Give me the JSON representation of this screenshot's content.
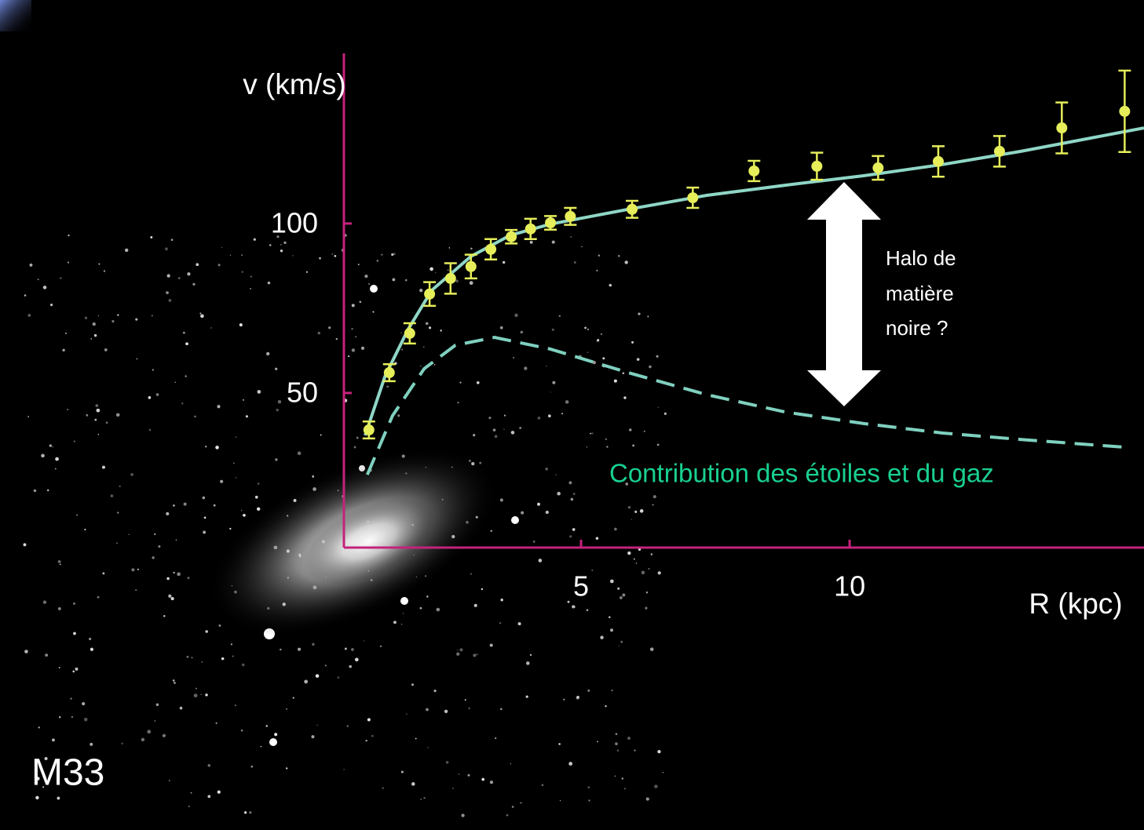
{
  "chart_data": {
    "type": "rotation-curve",
    "y_label": "v (km/s)",
    "x_label": "R (kpc)",
    "galaxy_label": "M33",
    "annotation_halo": [
      "Halo de",
      "matière",
      "noire ?"
    ],
    "annotation_components": "Contribution des étoiles et du gaz",
    "xlim": [
      0.585,
      15.48
    ],
    "ylim": [
      4.4,
      150.2
    ],
    "xticks": [
      5,
      10
    ],
    "yticks": [
      50,
      100
    ],
    "axis_color": "#c4227c",
    "points": {
      "color": "#e6ee5a",
      "x": [
        1.05,
        1.43,
        1.81,
        2.18,
        2.57,
        2.95,
        3.32,
        3.7,
        4.06,
        4.43,
        4.8,
        5.95,
        7.08,
        8.22,
        9.39,
        10.53,
        11.65,
        12.79,
        13.95,
        15.12
      ],
      "values": [
        39.1,
        56.0,
        67.6,
        79.2,
        83.8,
        87.3,
        92.4,
        96.1,
        98.4,
        100.2,
        102.1,
        104.2,
        107.6,
        115.5,
        116.9,
        116.4,
        118.3,
        121.3,
        128.2,
        133.1
      ],
      "errors": [
        2.5,
        2.5,
        3,
        3.5,
        4.5,
        3.5,
        3,
        2,
        3,
        2,
        2.5,
        2.5,
        3,
        3,
        4,
        3.5,
        4.5,
        4.5,
        7.5,
        12
      ]
    },
    "fit": {
      "color": "#8fd6c6",
      "x": [
        0.98,
        1.35,
        1.78,
        2.22,
        2.95,
        3.68,
        4.42,
        5.88,
        7.34,
        8.8,
        10.26,
        11.73,
        13.19,
        15.48
      ],
      "values": [
        37.5,
        54.9,
        68.8,
        80.3,
        90.3,
        96.5,
        99.8,
        104.2,
        108.3,
        111.3,
        114.1,
        117.4,
        121.3,
        128.2
      ]
    },
    "components": {
      "color": "#7fd0bf",
      "dashed": true,
      "x": [
        1.02,
        1.49,
        2.08,
        2.66,
        3.39,
        4.42,
        5.88,
        7.34,
        8.8,
        10.26,
        11.73,
        13.19,
        15.12
      ],
      "values": [
        25.9,
        43.3,
        57.2,
        64.1,
        66.4,
        63.0,
        56.0,
        49.5,
        44.4,
        41.0,
        38.2,
        36.3,
        34.0
      ]
    }
  }
}
